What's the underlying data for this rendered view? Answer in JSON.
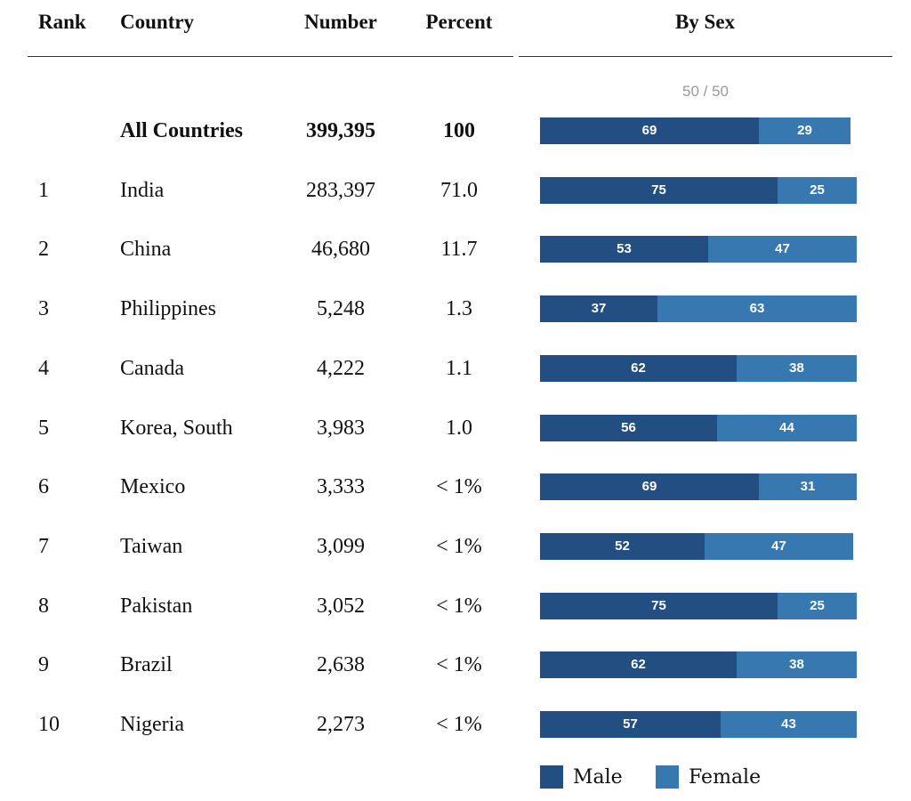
{
  "headers": {
    "rank": "Rank",
    "country": "Country",
    "number": "Number",
    "percent": "Percent",
    "by_sex": "By Sex"
  },
  "pager": "50 / 50",
  "colors": {
    "male": "#234e82",
    "female": "#3878b0"
  },
  "chart_data": {
    "type": "table",
    "title": "By Sex",
    "bar_max": 100,
    "legend": [
      "Male",
      "Female"
    ],
    "total": {
      "rank": "",
      "country": "All Countries",
      "number": "399,395",
      "percent": "100",
      "male": 69,
      "female": 29
    },
    "rows": [
      {
        "rank": "1",
        "country": "India",
        "number": "283,397",
        "percent": "71.0",
        "male": 75,
        "female": 25
      },
      {
        "rank": "2",
        "country": "China",
        "number": "46,680",
        "percent": "11.7",
        "male": 53,
        "female": 47
      },
      {
        "rank": "3",
        "country": "Philippines",
        "number": "5,248",
        "percent": "1.3",
        "male": 37,
        "female": 63
      },
      {
        "rank": "4",
        "country": "Canada",
        "number": "4,222",
        "percent": "1.1",
        "male": 62,
        "female": 38
      },
      {
        "rank": "5",
        "country": "Korea, South",
        "number": "3,983",
        "percent": "1.0",
        "male": 56,
        "female": 44
      },
      {
        "rank": "6",
        "country": "Mexico",
        "number": "3,333",
        "percent": "< 1%",
        "male": 69,
        "female": 31
      },
      {
        "rank": "7",
        "country": "Taiwan",
        "number": "3,099",
        "percent": "< 1%",
        "male": 52,
        "female": 47
      },
      {
        "rank": "8",
        "country": "Pakistan",
        "number": "3,052",
        "percent": "< 1%",
        "male": 75,
        "female": 25
      },
      {
        "rank": "9",
        "country": "Brazil",
        "number": "2,638",
        "percent": "< 1%",
        "male": 62,
        "female": 38
      },
      {
        "rank": "10",
        "country": "Nigeria",
        "number": "2,273",
        "percent": "< 1%",
        "male": 57,
        "female": 43
      }
    ]
  }
}
